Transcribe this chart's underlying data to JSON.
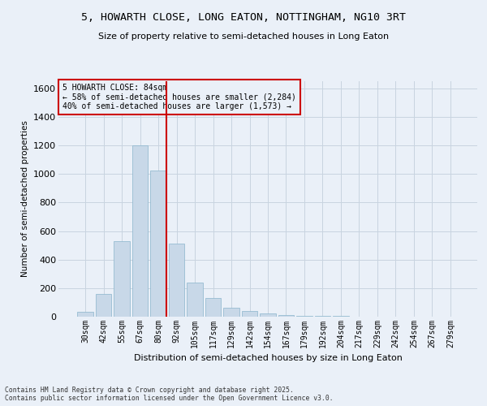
{
  "title_line1": "5, HOWARTH CLOSE, LONG EATON, NOTTINGHAM, NG10 3RT",
  "title_line2": "Size of property relative to semi-detached houses in Long Eaton",
  "xlabel": "Distribution of semi-detached houses by size in Long Eaton",
  "ylabel": "Number of semi-detached properties",
  "categories": [
    "30sqm",
    "42sqm",
    "55sqm",
    "67sqm",
    "80sqm",
    "92sqm",
    "105sqm",
    "117sqm",
    "129sqm",
    "142sqm",
    "154sqm",
    "167sqm",
    "179sqm",
    "192sqm",
    "204sqm",
    "217sqm",
    "229sqm",
    "242sqm",
    "254sqm",
    "267sqm",
    "279sqm"
  ],
  "values": [
    35,
    160,
    530,
    1200,
    1025,
    510,
    240,
    130,
    60,
    38,
    20,
    10,
    8,
    5,
    3,
    2,
    1,
    0,
    0,
    0,
    0
  ],
  "bar_color": "#c8d8e8",
  "bar_edge_color": "#8ab4cc",
  "vline_x_index": 4,
  "vline_color": "#cc0000",
  "annotation_box_color": "#cc0000",
  "grid_color": "#c8d4e0",
  "bg_color": "#eaf0f8",
  "ylim": [
    0,
    1650
  ],
  "yticks": [
    0,
    200,
    400,
    600,
    800,
    1000,
    1200,
    1400,
    1600
  ],
  "property_label": "5 HOWARTH CLOSE: 84sqm",
  "pct_smaller": 58,
  "n_smaller": 2284,
  "pct_larger": 40,
  "n_larger": 1573,
  "footer_line1": "Contains HM Land Registry data © Crown copyright and database right 2025.",
  "footer_line2": "Contains public sector information licensed under the Open Government Licence v3.0."
}
